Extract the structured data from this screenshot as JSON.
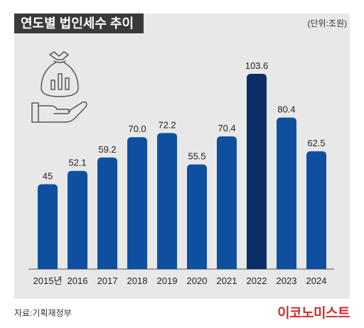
{
  "header": {
    "title": "연도별 법인세수 추이",
    "unit": "(단위:조원)"
  },
  "footer": {
    "source": "자료:기획재정부",
    "brand": "이코노미스트"
  },
  "icons": {
    "illustration": "money-bag-hand-icon"
  },
  "colors": {
    "bar": "#0f4fa0",
    "highlight": "#0b2e6b",
    "panel": "#e8e8e8",
    "title_bg": "#3a3a3a",
    "brand": "#d42a2a"
  },
  "chart_data": {
    "type": "bar",
    "title": "연도별 법인세수 추이",
    "unit": "(단위:조원)",
    "categories": [
      "2015년",
      "2016",
      "2017",
      "2018",
      "2019",
      "2020",
      "2021",
      "2022",
      "2023",
      "2024"
    ],
    "values": [
      45,
      52.1,
      59.2,
      70.0,
      72.2,
      55.5,
      70.4,
      103.6,
      80.4,
      62.5
    ],
    "value_labels": [
      "45",
      "52.1",
      "59.2",
      "70.0",
      "72.2",
      "55.5",
      "70.4",
      "103.6",
      "80.4",
      "62.5"
    ],
    "highlight_category": "2022",
    "ylim": [
      0,
      103.6
    ],
    "grid": false,
    "legend": "none"
  }
}
